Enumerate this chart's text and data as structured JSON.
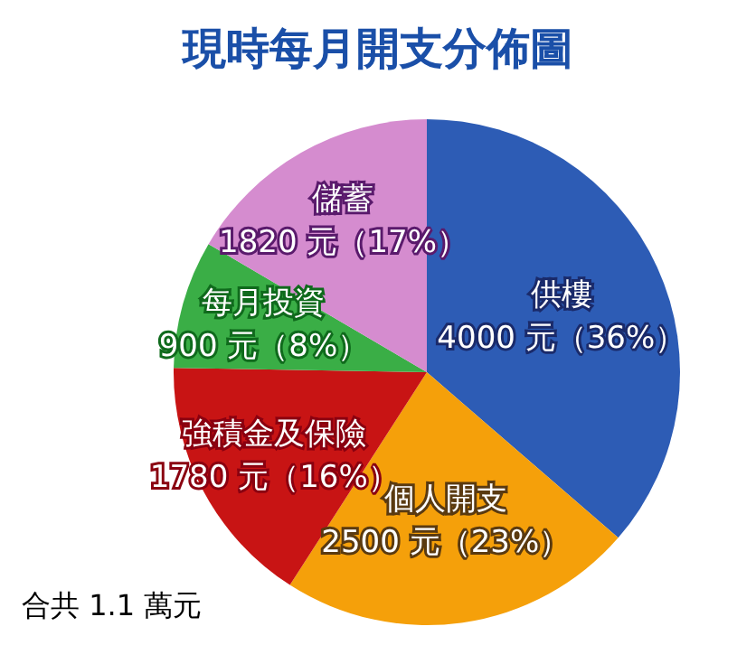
{
  "chart_data": {
    "type": "pie",
    "title": "現時每月開支分佈圖",
    "categories": [
      "供樓",
      "個人開支",
      "強積金及保險",
      "每月投資",
      "儲蓄"
    ],
    "values": [
      4000,
      2500,
      1780,
      900,
      1820
    ],
    "value_labels": [
      "4000 元（36%）",
      "2500 元（23%）",
      "1780 元（16%）",
      "900 元（8%）",
      "1820 元（17%）"
    ],
    "colors": [
      "#2d5cb5",
      "#f5a00a",
      "#c81414",
      "#3aae46",
      "#d58ccf"
    ],
    "annotations": [
      "合共 1.1 萬元"
    ],
    "legend": false
  }
}
